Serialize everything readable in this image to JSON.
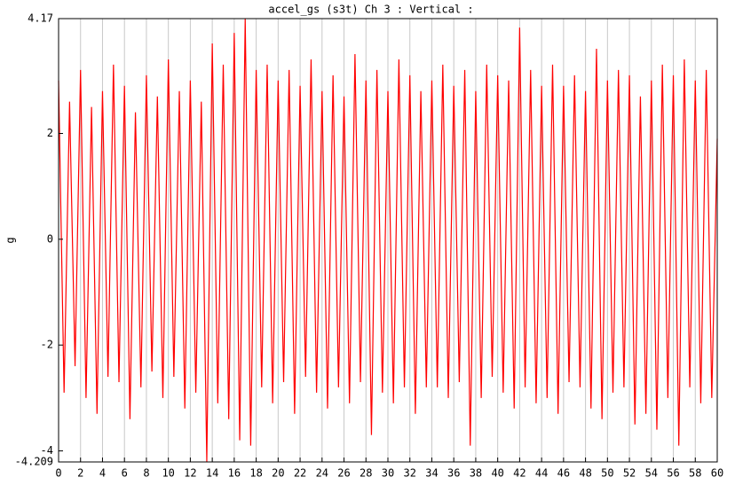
{
  "chart_data": {
    "type": "line",
    "title": "accel_gs (s3t)  Ch 3 : Vertical :",
    "y_label": "g",
    "xlim": [
      0,
      60
    ],
    "xticks": [
      0,
      2,
      4,
      6,
      8,
      10,
      12,
      14,
      16,
      18,
      20,
      22,
      24,
      26,
      28,
      30,
      32,
      34,
      36,
      38,
      40,
      42,
      44,
      46,
      48,
      50,
      52,
      54,
      56,
      58,
      60
    ],
    "ylim": [
      -4.209,
      4.17
    ],
    "yticks": [
      -4.209,
      -4,
      -2,
      0,
      2,
      4.17
    ],
    "grid": true,
    "x": [
      0,
      0.5,
      1,
      1.5,
      2,
      2.5,
      3,
      3.5,
      4,
      4.5,
      5,
      5.5,
      6,
      6.5,
      7,
      7.5,
      8,
      8.5,
      9,
      9.5,
      10,
      10.5,
      11,
      11.5,
      12,
      12.5,
      13,
      13.5,
      14,
      14.5,
      15,
      15.5,
      16,
      16.5,
      17,
      17.5,
      18,
      18.5,
      19,
      19.5,
      20,
      20.5,
      21,
      21.5,
      22,
      22.5,
      23,
      23.5,
      24,
      24.5,
      25,
      25.5,
      26,
      26.5,
      27,
      27.5,
      28,
      28.5,
      29,
      29.5,
      30,
      30.5,
      31,
      31.5,
      32,
      32.5,
      33,
      33.5,
      34,
      34.5,
      35,
      35.5,
      36,
      36.5,
      37,
      37.5,
      38,
      38.5,
      39,
      39.5,
      40,
      40.5,
      41,
      41.5,
      42,
      42.5,
      43,
      43.5,
      44,
      44.5,
      45,
      45.5,
      46,
      46.5,
      47,
      47.5,
      48,
      48.5,
      49,
      49.5,
      50,
      50.5,
      51,
      51.5,
      52,
      52.5,
      53,
      53.5,
      54,
      54.5,
      55,
      55.5,
      56,
      56.5,
      57,
      57.5,
      58,
      58.5,
      59,
      59.5,
      60
    ],
    "series": [
      {
        "color": "#ff0000",
        "values": [
          3.0,
          -2.9,
          2.6,
          -2.4,
          3.2,
          -3.0,
          2.5,
          -3.3,
          2.8,
          -2.6,
          3.3,
          -2.7,
          2.9,
          -3.4,
          2.4,
          -2.8,
          3.1,
          -2.5,
          2.7,
          -3.0,
          3.4,
          -2.6,
          2.8,
          -3.2,
          3.0,
          -2.9,
          2.6,
          -4.2,
          3.7,
          -3.1,
          3.3,
          -3.4,
          3.9,
          -3.8,
          4.17,
          -3.9,
          3.2,
          -2.8,
          3.3,
          -3.1,
          3.0,
          -2.7,
          3.2,
          -3.3,
          2.9,
          -2.6,
          3.4,
          -2.9,
          2.8,
          -3.2,
          3.1,
          -2.8,
          2.7,
          -3.1,
          3.5,
          -2.7,
          3.0,
          -3.7,
          3.2,
          -2.9,
          2.8,
          -3.1,
          3.4,
          -2.8,
          3.1,
          -3.3,
          2.8,
          -2.8,
          3.0,
          -2.8,
          3.3,
          -3.0,
          2.9,
          -2.7,
          3.2,
          -3.9,
          2.8,
          -3.0,
          3.3,
          -2.6,
          3.1,
          -2.9,
          3.0,
          -3.2,
          4.0,
          -2.8,
          3.2,
          -3.1,
          2.9,
          -3.0,
          3.3,
          -3.3,
          2.9,
          -2.7,
          3.1,
          -2.8,
          2.8,
          -3.2,
          3.6,
          -3.4,
          3.0,
          -2.9,
          3.2,
          -2.8,
          3.1,
          -3.5,
          2.7,
          -3.3,
          3.0,
          -3.6,
          3.3,
          -3.0,
          3.1,
          -3.9,
          3.4,
          -2.8,
          3.0,
          -3.1,
          3.2,
          -3.0,
          1.9
        ]
      }
    ]
  }
}
